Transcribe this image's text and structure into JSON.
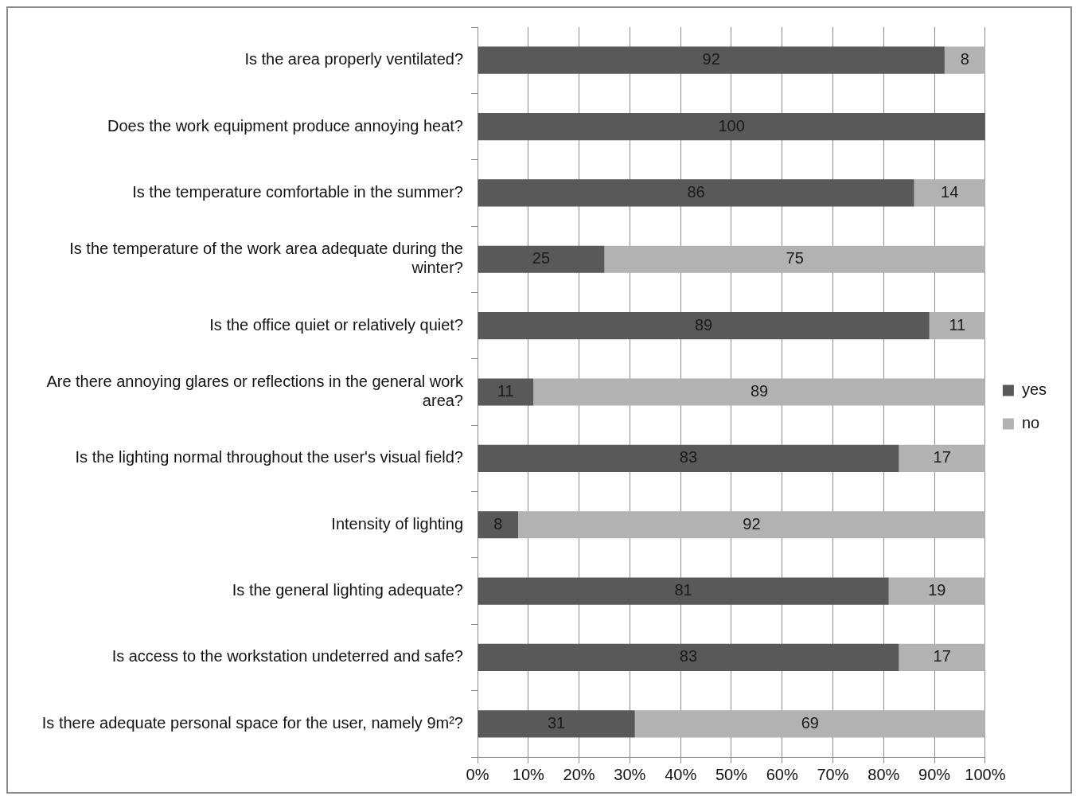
{
  "chart_data": {
    "type": "bar",
    "orientation": "horizontal",
    "stacked": true,
    "categories": [
      "Is the area properly ventilated?",
      "Does the work equipment produce annoying heat?",
      "Is the temperature comfortable in the summer?",
      "Is the temperature of the work area adequate during the winter?",
      "Is the office quiet or relatively quiet?",
      "Are there annoying glares or reflections in the general work area?",
      "Is the lighting normal throughout the user's visual field?",
      "Intensity of lighting",
      "Is the general lighting adequate?",
      "Is access to the workstation undeterred and safe?",
      "Is there adequate personal space for the user, namely 9m²?"
    ],
    "series": [
      {
        "name": "yes",
        "color": "#595959",
        "values": [
          92,
          100,
          86,
          25,
          89,
          11,
          83,
          8,
          81,
          83,
          31
        ],
        "value_labels": [
          "92",
          "100",
          "86",
          "25",
          "89",
          "11",
          "83",
          "8",
          "81",
          "83",
          "31"
        ]
      },
      {
        "name": "no",
        "color": "#b2b2b2",
        "values": [
          8,
          0,
          14,
          75,
          11,
          89,
          17,
          92,
          19,
          17,
          69
        ],
        "value_labels": [
          "8",
          null,
          "14",
          "75",
          "11",
          "89",
          "17",
          "92",
          "19",
          "17",
          "69"
        ]
      }
    ],
    "xlim": [
      0,
      100
    ],
    "xticks": [
      {
        "value": 0,
        "label": "0%"
      },
      {
        "value": 10,
        "label": "10%"
      },
      {
        "value": 20,
        "label": "20%"
      },
      {
        "value": 30,
        "label": "30%"
      },
      {
        "value": 40,
        "label": "40%"
      },
      {
        "value": 50,
        "label": "50%"
      },
      {
        "value": 60,
        "label": "60%"
      },
      {
        "value": 70,
        "label": "70%"
      },
      {
        "value": 80,
        "label": "80%"
      },
      {
        "value": 90,
        "label": "90%"
      },
      {
        "value": 100,
        "label": "100%"
      }
    ],
    "grid": "x",
    "legend": "right"
  }
}
